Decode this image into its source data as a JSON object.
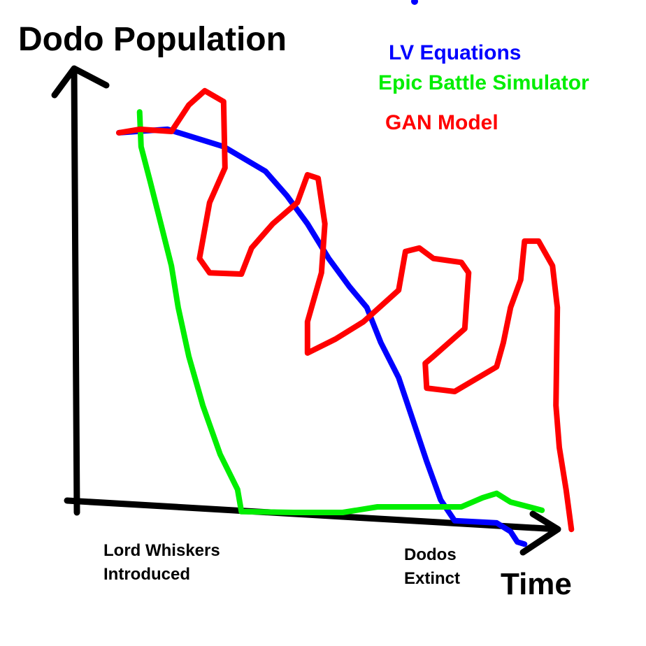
{
  "chart_data": {
    "type": "line",
    "y_label": "Dodo Population",
    "x_label": "Time",
    "annotations": [
      {
        "lines": [
          "Lord Whiskers",
          "Introduced"
        ]
      },
      {
        "lines": [
          "Dodos",
          "Extinct"
        ]
      }
    ],
    "xlim": [
      0,
      105
    ],
    "ylim": [
      -15,
      100
    ],
    "series": [
      {
        "name": "LV Equations",
        "color": "#0000ff",
        "x": [
          8.7,
          18.8,
          30.4,
          39.1,
          43.5,
          47.8,
          52.2,
          56.5,
          60.1,
          63.0,
          66.7,
          69.6,
          72.5,
          75.4,
          78.3,
          87.0,
          89.9,
          91.3,
          92.8
        ],
        "values": [
          85.5,
          86.3,
          82.3,
          76.6,
          71.0,
          64.5,
          56.5,
          50.0,
          45.2,
          37.1,
          29.0,
          19.4,
          9.7,
          0.8,
          -4.0,
          -4.5,
          -6.5,
          -8.9,
          -9.4
        ]
      },
      {
        "name": "Epic Battle Simulator",
        "color": "#00ee00",
        "x": [
          13.0,
          13.3,
          15.2,
          17.4,
          19.6,
          21.0,
          23.2,
          26.1,
          29.7,
          33.3,
          34.1,
          44.9,
          55.1,
          62.3,
          71.0,
          79.7,
          84.1,
          87.0,
          89.9,
          96.4
        ],
        "values": [
          90.3,
          82.3,
          74.2,
          64.5,
          54.8,
          45.2,
          33.9,
          22.6,
          11.3,
          3.2,
          -1.9,
          -2.1,
          -2.1,
          -0.8,
          -0.8,
          -0.8,
          1.3,
          2.3,
          0.3,
          -1.6
        ]
      },
      {
        "name": "GAN Model",
        "color": "#ff0000",
        "x": [
          8.7,
          13.0,
          19.6,
          23.2,
          26.5,
          30.4,
          30.7,
          27.5,
          25.4,
          27.5,
          34.1,
          36.2,
          40.6,
          45.7,
          47.8,
          50.0,
          51.4,
          50.7,
          47.8,
          47.8,
          53.6,
          59.4,
          66.7,
          68.1,
          71.0,
          73.9,
          79.7,
          81.2,
          80.4,
          73.9,
          72.2,
          72.5,
          78.3,
          87.0,
          88.4,
          89.9,
          92.0,
          92.8,
          95.7,
          98.6,
          99.6,
          99.3,
          100.0,
          101.4,
          102.5
        ],
        "values": [
          85.5,
          86.3,
          85.8,
          91.9,
          95.2,
          92.7,
          77.4,
          69.4,
          56.5,
          53.2,
          52.9,
          58.9,
          64.5,
          69.4,
          75.8,
          75.0,
          64.5,
          53.2,
          41.9,
          34.7,
          37.9,
          41.9,
          49.2,
          58.1,
          58.9,
          56.5,
          55.6,
          53.2,
          40.3,
          33.9,
          32.3,
          26.6,
          25.8,
          31.5,
          37.1,
          45.2,
          51.6,
          60.5,
          60.5,
          54.8,
          45.2,
          22.6,
          12.9,
          3.2,
          -6.0
        ]
      }
    ]
  }
}
